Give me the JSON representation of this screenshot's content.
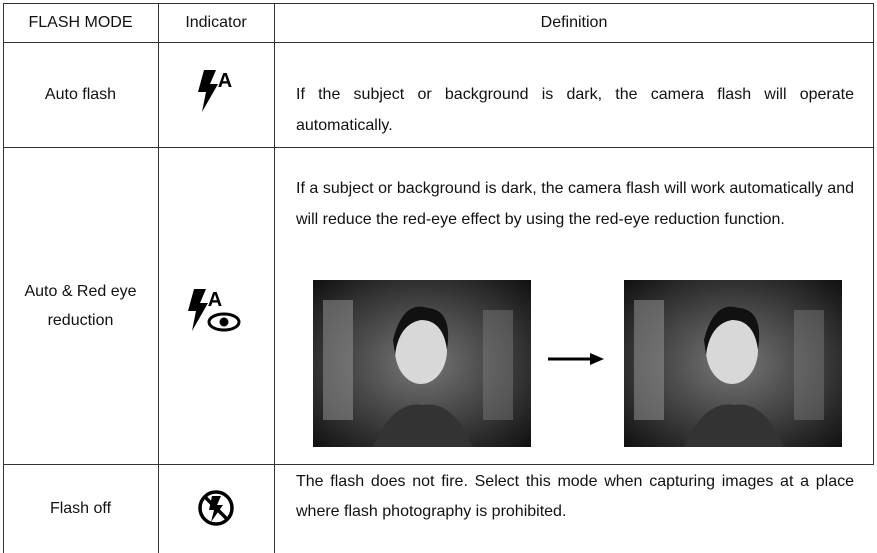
{
  "table": {
    "columns": [
      "FLASH MODE",
      "Indicator",
      "Definition"
    ],
    "rows": [
      {
        "mode": "Auto flash",
        "definition": "If the subject or background is dark, the camera flash will operate automatically."
      },
      {
        "mode": "Auto & Red eye reduction",
        "definition": "If a subject or background is dark, the camera flash will work automatically and will reduce the red-eye effect by using the red-eye reduction function."
      },
      {
        "mode": "Flash off",
        "definition": "The flash does not fire. Select this mode when capturing images at a place where flash photography is prohibited."
      }
    ]
  }
}
